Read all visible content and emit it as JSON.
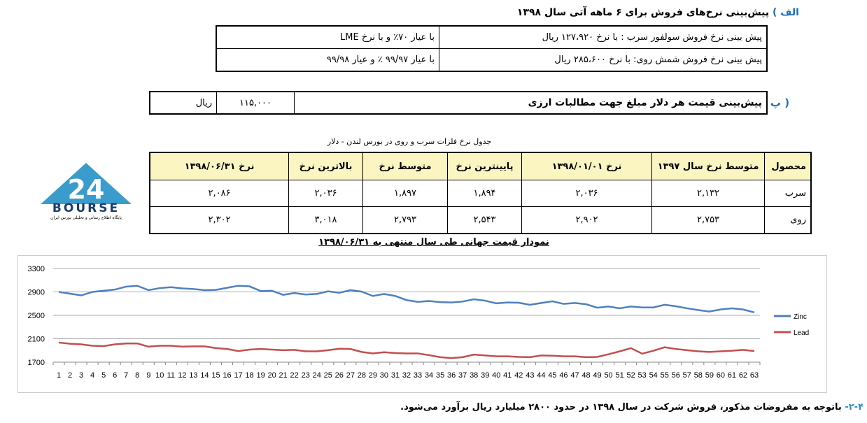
{
  "section_a": {
    "marker": "الف )",
    "title": "پیش‌بینی نرخ‌های فروش برای ۶ ماهه  آتی سال ۱۳۹۸",
    "rows": [
      {
        "desc": "پیش بینی نرخ فروش سولفور سرب :  با نرخ ۱۲۷،۹۲۰ ریال",
        "spec": "با عیار ۷۰٪ و  با نرخ LME"
      },
      {
        "desc": "پیش بینی نرخ فروش شمش روی:   با نرخ ۲۸۵،۶۰۰ ریال",
        "spec": "با عیار ۹۹/۹۷ ٪ و عیار ۹۹/۹۸"
      }
    ]
  },
  "section_b": {
    "marker": "پ )",
    "title": "پیش‌بینی قیمت هر دلار مبلغ جهت مطالبات ارزی",
    "value": "۱۱۵,۰۰۰",
    "unit": "ریال"
  },
  "price_table": {
    "caption": "جدول نرخ فلزات سرب و روی در بورس لندن - دلار",
    "headers": [
      "محصول",
      "متوسط نرخ سال ۱۳۹۷",
      "نرخ ۱۳۹۸/۰۱/۰۱",
      "پایینترین نرخ",
      "متوسط نرخ",
      "بالاترین نرخ",
      "نرخ ۱۳۹۸/۰۶/۳۱"
    ],
    "rows": [
      [
        "سرب",
        "۲,۱۳۲",
        "۲,۰۳۶",
        "۱,۸۹۴",
        "۱,۸۹۷",
        "۲,۰۳۶",
        "۲,۰۸۶"
      ],
      [
        "روی",
        "۲,۷۵۳",
        "۲,۹۰۲",
        "۲,۵۴۳",
        "۲,۷۹۳",
        "۳,۰۱۸",
        "۲,۳۰۲"
      ]
    ]
  },
  "logo": {
    "brand": "BOURSE",
    "number": "24",
    "tagline": "پایگاه اطلاع رسانی و تحلیلی بورس ایران"
  },
  "chart_title": "نمودار قیمت جهانی طی سال  منتهی به ۱۳۹۸/۰۶/۳۱",
  "chart_data": {
    "type": "line",
    "title": "نمودار قیمت جهانی طی سال  منتهی به ۱۳۹۸/۰۶/۳۱",
    "xlabel": "",
    "ylabel": "",
    "ylim": [
      1700,
      3300
    ],
    "yticks": [
      1700,
      2100,
      2500,
      2900,
      3300
    ],
    "grid": true,
    "legend": "right",
    "x": [
      1,
      2,
      3,
      4,
      5,
      6,
      7,
      8,
      9,
      10,
      11,
      12,
      13,
      14,
      15,
      16,
      17,
      18,
      19,
      20,
      21,
      22,
      23,
      24,
      25,
      26,
      27,
      28,
      29,
      30,
      31,
      32,
      33,
      34,
      35,
      36,
      37,
      38,
      39,
      40,
      41,
      42,
      43,
      44,
      45,
      46,
      47,
      48,
      49,
      50,
      51,
      52,
      53,
      54,
      55,
      56,
      57,
      58,
      59,
      60,
      61,
      62,
      63
    ],
    "series": [
      {
        "name": "Zinc",
        "color": "#4f81bd",
        "values": [
          2900,
          2870,
          2840,
          2900,
          2920,
          2940,
          2990,
          3005,
          2930,
          2965,
          2980,
          2960,
          2950,
          2930,
          2935,
          2970,
          3005,
          2995,
          2915,
          2920,
          2850,
          2880,
          2855,
          2865,
          2910,
          2885,
          2930,
          2905,
          2830,
          2865,
          2830,
          2760,
          2730,
          2745,
          2725,
          2720,
          2735,
          2775,
          2750,
          2705,
          2720,
          2715,
          2680,
          2710,
          2740,
          2695,
          2710,
          2690,
          2630,
          2650,
          2620,
          2650,
          2635,
          2635,
          2680,
          2655,
          2620,
          2590,
          2565,
          2600,
          2620,
          2600,
          2550
        ]
      },
      {
        "name": "Lead",
        "color": "#c0504d",
        "values": [
          2035,
          2015,
          2005,
          1980,
          1975,
          2005,
          2020,
          2020,
          1965,
          1980,
          1980,
          1965,
          1970,
          1970,
          1940,
          1925,
          1890,
          1915,
          1925,
          1915,
          1905,
          1910,
          1885,
          1885,
          1905,
          1930,
          1925,
          1875,
          1850,
          1870,
          1855,
          1850,
          1850,
          1820,
          1785,
          1770,
          1785,
          1830,
          1815,
          1800,
          1800,
          1790,
          1785,
          1815,
          1810,
          1800,
          1800,
          1785,
          1790,
          1835,
          1885,
          1940,
          1845,
          1895,
          1955,
          1925,
          1905,
          1885,
          1875,
          1885,
          1895,
          1910,
          1890
        ]
      }
    ]
  },
  "footer": {
    "number": "۲-۴-",
    "text": "باتوجه به مفروضات مذکور، فروش شرکت در سال ۱۳۹۸ در حدود  ۲۸۰۰ میلیارد ریال برآورد می‌شود."
  }
}
